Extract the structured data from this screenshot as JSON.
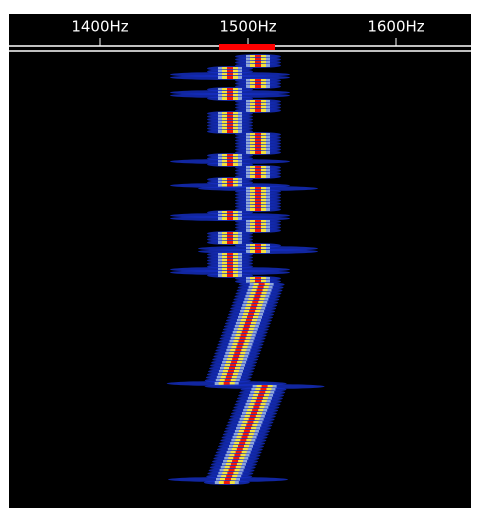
{
  "scale": {
    "ticks": [
      {
        "label": "1400Hz"
      },
      {
        "label": "1500Hz"
      },
      {
        "label": "1600Hz"
      }
    ]
  }
}
